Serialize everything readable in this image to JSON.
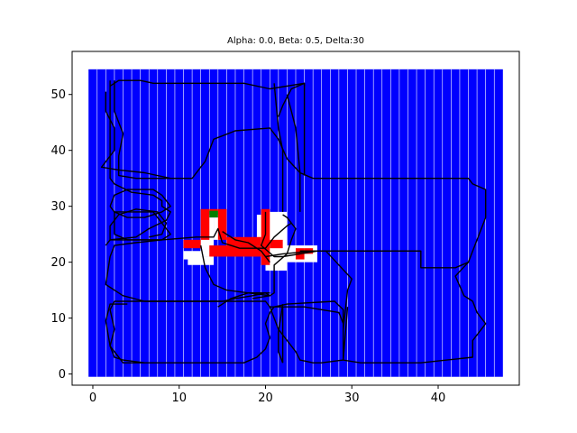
{
  "chart_data": {
    "type": "heatmap",
    "title": "Alpha: 0.0, Beta: 0.5, Delta:30",
    "xlabel": "",
    "ylabel": "",
    "xlim": [
      -2.4,
      49.4
    ],
    "ylim": [
      -2.0,
      57.7
    ],
    "x_ticks": [
      0,
      10,
      20,
      30,
      40
    ],
    "y_ticks": [
      0,
      10,
      20,
      30,
      40,
      50
    ],
    "grid": false,
    "background_fill": {
      "color": "#0000ff",
      "x_range": [
        -0.5,
        47.5
      ],
      "y_range": [
        -0.5,
        54.5
      ]
    },
    "white_column_lines_x": [
      0.5,
      1.5,
      2.5,
      3.5,
      4.5,
      5.5,
      6.5,
      7.5,
      8.5,
      9.5,
      10.5,
      11.5,
      12.5,
      13.5,
      14.5,
      15.5,
      16.5,
      17.5,
      18.5,
      19.5,
      20.5,
      21.5,
      22.5,
      23.5,
      24.5,
      25.5,
      26.5,
      27.5,
      28.5,
      29.5,
      30.5,
      31.5,
      32.5,
      33.5,
      34.5,
      35.5,
      36.5,
      37.5,
      38.5,
      39.5,
      40.5,
      41.5,
      42.5,
      43.5,
      44.5,
      45.5,
      46.5
    ],
    "cells": [
      {
        "x": [
          10.5,
          12.5
        ],
        "y": [
          20.5,
          22.0
        ],
        "color": "#ffffff"
      },
      {
        "x": [
          11.0,
          14.0
        ],
        "y": [
          19.5,
          21.0
        ],
        "color": "#ffffff"
      },
      {
        "x": [
          12.5,
          14.0
        ],
        "y": [
          21.0,
          28.0
        ],
        "color": "#ffffff"
      },
      {
        "x": [
          14.0,
          15.0
        ],
        "y": [
          24.0,
          28.0
        ],
        "color": "#ffffff"
      },
      {
        "x": [
          19.0,
          20.0
        ],
        "y": [
          21.5,
          28.5
        ],
        "color": "#ffffff"
      },
      {
        "x": [
          20.0,
          22.5
        ],
        "y": [
          18.5,
          29.0
        ],
        "color": "#ffffff"
      },
      {
        "x": [
          22.5,
          26.0
        ],
        "y": [
          20.0,
          23.0
        ],
        "color": "#ffffff"
      },
      {
        "x": [
          10.5,
          12.5
        ],
        "y": [
          22.5,
          24.0
        ],
        "color": "#ff0000"
      },
      {
        "x": [
          12.5,
          13.5
        ],
        "y": [
          24.0,
          29.5
        ],
        "color": "#ff0000"
      },
      {
        "x": [
          13.5,
          14.5
        ],
        "y": [
          28.5,
          29.5
        ],
        "color": "#ff0000"
      },
      {
        "x": [
          14.5,
          15.5
        ],
        "y": [
          24.0,
          29.5
        ],
        "color": "#ff0000"
      },
      {
        "x": [
          13.5,
          19.5
        ],
        "y": [
          21.0,
          23.0
        ],
        "color": "#ff0000"
      },
      {
        "x": [
          15.5,
          19.5
        ],
        "y": [
          23.0,
          24.5
        ],
        "color": "#ff0000"
      },
      {
        "x": [
          19.5,
          20.5
        ],
        "y": [
          19.5,
          29.5
        ],
        "color": "#ff0000"
      },
      {
        "x": [
          20.5,
          22.0
        ],
        "y": [
          22.5,
          24.0
        ],
        "color": "#ff0000"
      },
      {
        "x": [
          23.5,
          24.5
        ],
        "y": [
          20.5,
          22.5
        ],
        "color": "#ff0000"
      },
      {
        "x": [
          24.5,
          25.5
        ],
        "y": [
          21.5,
          22.5
        ],
        "color": "#ff0000"
      },
      {
        "x": [
          13.5,
          14.5
        ],
        "y": [
          28.0,
          29.2
        ],
        "color": "#008000"
      }
    ],
    "paths": [
      [
        [
          2.0,
          51.5
        ],
        [
          3.0,
          52.5
        ],
        [
          5.5,
          52.5
        ],
        [
          7.0,
          52.0
        ],
        [
          17.5,
          52.0
        ],
        [
          20.5,
          51.0
        ],
        [
          24.5,
          52.0
        ],
        [
          24.5,
          51.5
        ]
      ],
      [
        [
          2.5,
          52.5
        ],
        [
          2.5,
          47.0
        ],
        [
          3.5,
          43.0
        ],
        [
          3.0,
          39.0
        ],
        [
          3.0,
          35.5
        ],
        [
          5.0,
          35.0
        ],
        [
          11.5,
          35.0
        ],
        [
          13.0,
          38.0
        ],
        [
          14.0,
          42.0
        ],
        [
          16.5,
          43.5
        ],
        [
          20.5,
          44.0
        ],
        [
          21.5,
          42.0
        ],
        [
          22.5,
          38.5
        ],
        [
          24.0,
          36.0
        ],
        [
          25.5,
          35.0
        ],
        [
          31.0,
          35.0
        ],
        [
          43.5,
          35.0
        ],
        [
          44.0,
          34.0
        ],
        [
          45.5,
          33.0
        ],
        [
          45.5,
          28.0
        ],
        [
          44.0,
          22.0
        ],
        [
          43.5,
          20.0
        ],
        [
          42.0,
          19.0
        ],
        [
          38.0,
          19.0
        ],
        [
          38.0,
          22.0
        ],
        [
          30.0,
          22.0
        ],
        [
          24.0,
          22.0
        ]
      ],
      [
        [
          1.5,
          50.5
        ],
        [
          1.5,
          47.0
        ],
        [
          2.5,
          44.0
        ],
        [
          2.5,
          40.0
        ],
        [
          1.0,
          37.0
        ],
        [
          3.0,
          36.5
        ],
        [
          6.0,
          36.0
        ],
        [
          9.0,
          35.0
        ]
      ],
      [
        [
          2.0,
          52.5
        ],
        [
          2.0,
          35.0
        ],
        [
          2.5,
          34.0
        ],
        [
          4.5,
          32.5
        ],
        [
          7.0,
          32.0
        ],
        [
          8.0,
          31.0
        ],
        [
          8.0,
          30.0
        ],
        [
          9.0,
          29.0
        ],
        [
          8.5,
          27.5
        ],
        [
          6.5,
          26.0
        ],
        [
          5.0,
          24.5
        ],
        [
          2.0,
          24.0
        ],
        [
          1.5,
          23.0
        ]
      ],
      [
        [
          2.0,
          30.0
        ],
        [
          2.5,
          32.0
        ],
        [
          4.0,
          33.0
        ],
        [
          7.0,
          33.0
        ],
        [
          8.0,
          32.0
        ],
        [
          9.0,
          30.0
        ],
        [
          8.0,
          29.0
        ],
        [
          6.0,
          28.0
        ],
        [
          4.0,
          28.0
        ],
        [
          2.5,
          29.0
        ],
        [
          2.0,
          30.0
        ]
      ],
      [
        [
          2.5,
          25.0
        ],
        [
          2.5,
          29.0
        ],
        [
          7.0,
          29.0
        ],
        [
          8.0,
          27.0
        ],
        [
          9.0,
          25.0
        ],
        [
          8.0,
          24.0
        ],
        [
          4.0,
          24.0
        ],
        [
          2.5,
          25.0
        ]
      ],
      [
        [
          2.0,
          24.0
        ],
        [
          2.0,
          26.5
        ],
        [
          3.0,
          28.5
        ],
        [
          5.0,
          29.5
        ],
        [
          7.5,
          29.0
        ],
        [
          8.5,
          27.0
        ],
        [
          8.0,
          25.0
        ],
        [
          6.5,
          24.5
        ]
      ],
      [
        [
          2.0,
          24.0
        ],
        [
          8.0,
          24.0
        ],
        [
          12.0,
          24.5
        ],
        [
          14.0,
          24.5
        ],
        [
          14.5,
          26.0
        ],
        [
          15.0,
          23.5
        ],
        [
          17.0,
          22.5
        ],
        [
          20.0,
          22.5
        ],
        [
          21.0,
          24.5
        ],
        [
          22.5,
          26.5
        ],
        [
          23.0,
          27.0
        ]
      ],
      [
        [
          20.0,
          29.0
        ],
        [
          20.0,
          25.0
        ],
        [
          19.5,
          23.0
        ],
        [
          21.0,
          21.0
        ],
        [
          22.0,
          21.0
        ],
        [
          24.0,
          21.5
        ],
        [
          26.0,
          22.0
        ]
      ],
      [
        [
          12.5,
          23.0
        ],
        [
          13.0,
          19.0
        ],
        [
          14.0,
          16.0
        ],
        [
          15.5,
          15.0
        ],
        [
          18.0,
          14.5
        ],
        [
          20.5,
          14.0
        ],
        [
          21.0,
          14.5
        ],
        [
          21.0,
          17.0
        ],
        [
          21.0,
          19.5
        ],
        [
          22.5,
          21.5
        ],
        [
          23.0,
          24.0
        ],
        [
          23.5,
          26.0
        ],
        [
          22.5,
          28.0
        ],
        [
          22.0,
          28.5
        ]
      ],
      [
        [
          8.0,
          24.0
        ],
        [
          5.0,
          23.5
        ],
        [
          2.5,
          23.0
        ],
        [
          2.0,
          21.0
        ],
        [
          1.5,
          16.0
        ],
        [
          2.0,
          15.5
        ],
        [
          3.5,
          14.0
        ],
        [
          6.0,
          13.0
        ],
        [
          7.5,
          13.0
        ],
        [
          15.0,
          13.0
        ],
        [
          16.5,
          13.5
        ],
        [
          18.5,
          14.0
        ],
        [
          20.0,
          14.5
        ],
        [
          20.5,
          14.0
        ],
        [
          18.5,
          13.5
        ]
      ],
      [
        [
          14.5,
          12.0
        ],
        [
          16.0,
          13.5
        ],
        [
          18.0,
          14.5
        ],
        [
          20.5,
          14.5
        ]
      ],
      [
        [
          4.0,
          12.5
        ],
        [
          2.0,
          12.5
        ],
        [
          1.5,
          9.5
        ],
        [
          2.0,
          5.0
        ],
        [
          2.5,
          3.0
        ],
        [
          3.5,
          2.5
        ],
        [
          6.0,
          2.0
        ],
        [
          17.5,
          2.0
        ],
        [
          19.0,
          3.0
        ],
        [
          20.0,
          4.5
        ],
        [
          20.5,
          6.5
        ],
        [
          20.0,
          9.0
        ],
        [
          20.5,
          11.0
        ],
        [
          21.0,
          12.0
        ],
        [
          22.5,
          12.5
        ],
        [
          28.0,
          13.0
        ],
        [
          29.0,
          11.5
        ],
        [
          29.0,
          8.0
        ],
        [
          29.0,
          2.5
        ],
        [
          26.5,
          2.0
        ],
        [
          25.5,
          2.0
        ],
        [
          24.0,
          2.5
        ],
        [
          23.5,
          4.0
        ],
        [
          22.5,
          6.0
        ],
        [
          21.5,
          8.0
        ],
        [
          21.0,
          10.0
        ],
        [
          20.5,
          12.0
        ]
      ],
      [
        [
          2.5,
          13.0
        ],
        [
          20.0,
          13.0
        ],
        [
          20.5,
          12.0
        ],
        [
          24.5,
          12.0
        ],
        [
          28.5,
          11.0
        ],
        [
          29.0,
          9.0
        ]
      ],
      [
        [
          2.5,
          13.0
        ],
        [
          2.0,
          11.5
        ],
        [
          2.5,
          8.0
        ],
        [
          2.0,
          5.0
        ],
        [
          3.5,
          2.0
        ],
        [
          6.0,
          2.0
        ]
      ],
      [
        [
          22.0,
          12.5
        ],
        [
          21.5,
          7.5
        ],
        [
          21.5,
          4.0
        ],
        [
          22.0,
          2.0
        ]
      ],
      [
        [
          20.0,
          21.0
        ],
        [
          22.0,
          21.5
        ],
        [
          25.5,
          22.0
        ],
        [
          38.0,
          22.0
        ]
      ],
      [
        [
          24.0,
          22.0
        ],
        [
          27.0,
          22.0
        ],
        [
          30.0,
          17.0
        ],
        [
          29.5,
          15.0
        ],
        [
          29.0,
          8.0
        ]
      ],
      [
        [
          29.5,
          12.0
        ],
        [
          29.0,
          2.5
        ],
        [
          31.0,
          2.0
        ],
        [
          38.0,
          2.0
        ],
        [
          41.0,
          2.5
        ],
        [
          44.0,
          3.0
        ],
        [
          44.0,
          6.0
        ],
        [
          45.5,
          9.0
        ],
        [
          44.5,
          11.0
        ],
        [
          44.0,
          13.0
        ],
        [
          43.0,
          14.0
        ],
        [
          42.0,
          17.5
        ],
        [
          43.5,
          20.0
        ]
      ],
      [
        [
          21.5,
          46.0
        ],
        [
          22.0,
          48.0
        ],
        [
          23.0,
          51.0
        ],
        [
          24.5,
          52.0
        ],
        [
          24.5,
          35.5
        ]
      ],
      [
        [
          21.0,
          52.0
        ],
        [
          21.5,
          44.0
        ],
        [
          22.0,
          40.0
        ],
        [
          22.0,
          29.0
        ]
      ],
      [
        [
          22.5,
          50.0
        ],
        [
          23.5,
          44.0
        ],
        [
          24.0,
          36.0
        ],
        [
          24.0,
          29.0
        ]
      ],
      [
        [
          15.0,
          25.5
        ],
        [
          16.5,
          24.0
        ],
        [
          18.0,
          23.5
        ],
        [
          19.5,
          22.0
        ],
        [
          20.5,
          20.0
        ]
      ],
      [
        [
          22.0,
          12.0
        ],
        [
          22.0,
          2.0
        ]
      ]
    ]
  }
}
